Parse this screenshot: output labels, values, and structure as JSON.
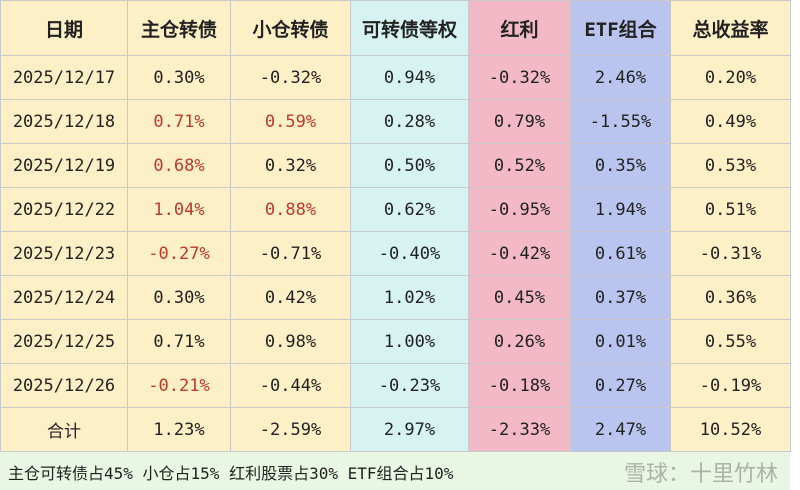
{
  "table": {
    "columns": [
      {
        "label": "日期",
        "bg": "#fdf0c6"
      },
      {
        "label": "主仓转债",
        "bg": "#fdf0c6"
      },
      {
        "label": "小仓转债",
        "bg": "#fdf0c6"
      },
      {
        "label": "可转债等权",
        "bg": "#d6f3f1"
      },
      {
        "label": "红利",
        "bg": "#f3b9c7"
      },
      {
        "label": "ETF组合",
        "bg": "#b9c5ef"
      },
      {
        "label": "总收益率",
        "bg": "#fdf0c6"
      }
    ],
    "rows": [
      {
        "cells": [
          "2025/12/17",
          "0.30%",
          "-0.32%",
          "0.94%",
          "-0.32%",
          "2.46%",
          "0.20%"
        ],
        "colors": [
          "#222",
          "#222",
          "#222",
          "#222",
          "#222",
          "#222",
          "#222"
        ]
      },
      {
        "cells": [
          "2025/12/18",
          "0.71%",
          "0.59%",
          "0.28%",
          "0.79%",
          "-1.55%",
          "0.49%"
        ],
        "colors": [
          "#222",
          "#c0392b",
          "#c0392b",
          "#222",
          "#222",
          "#222",
          "#222"
        ]
      },
      {
        "cells": [
          "2025/12/19",
          "0.68%",
          "0.32%",
          "0.50%",
          "0.52%",
          "0.35%",
          "0.53%"
        ],
        "colors": [
          "#222",
          "#c0392b",
          "#222",
          "#222",
          "#222",
          "#222",
          "#222"
        ]
      },
      {
        "cells": [
          "2025/12/22",
          "1.04%",
          "0.88%",
          "0.62%",
          "-0.95%",
          "1.94%",
          "0.51%"
        ],
        "colors": [
          "#222",
          "#c0392b",
          "#c0392b",
          "#222",
          "#222",
          "#222",
          "#222"
        ]
      },
      {
        "cells": [
          "2025/12/23",
          "-0.27%",
          "-0.71%",
          "-0.40%",
          "-0.42%",
          "0.61%",
          "-0.31%"
        ],
        "colors": [
          "#222",
          "#c0392b",
          "#222",
          "#222",
          "#222",
          "#222",
          "#222"
        ]
      },
      {
        "cells": [
          "2025/12/24",
          "0.30%",
          "0.42%",
          "1.02%",
          "0.45%",
          "0.37%",
          "0.36%"
        ],
        "colors": [
          "#222",
          "#222",
          "#222",
          "#222",
          "#222",
          "#222",
          "#222"
        ]
      },
      {
        "cells": [
          "2025/12/25",
          "0.71%",
          "0.98%",
          "1.00%",
          "0.26%",
          "0.01%",
          "0.55%"
        ],
        "colors": [
          "#222",
          "#222",
          "#222",
          "#222",
          "#222",
          "#222",
          "#222"
        ]
      },
      {
        "cells": [
          "2025/12/26",
          "-0.21%",
          "-0.44%",
          "-0.23%",
          "-0.18%",
          "0.27%",
          "-0.19%"
        ],
        "colors": [
          "#222",
          "#c0392b",
          "#222",
          "#222",
          "#222",
          "#222",
          "#222"
        ]
      },
      {
        "cells": [
          "合计",
          "1.23%",
          "-2.59%",
          "2.97%",
          "-2.33%",
          "2.47%",
          "10.52%"
        ],
        "colors": [
          "#222",
          "#222",
          "#222",
          "#222",
          "#222",
          "#222",
          "#222"
        ]
      }
    ]
  },
  "footer": {
    "text": "主仓可转债占45% 小仓占15% 红利股票占30% ETF组合占10%",
    "watermark": "雪球：十里竹林"
  }
}
